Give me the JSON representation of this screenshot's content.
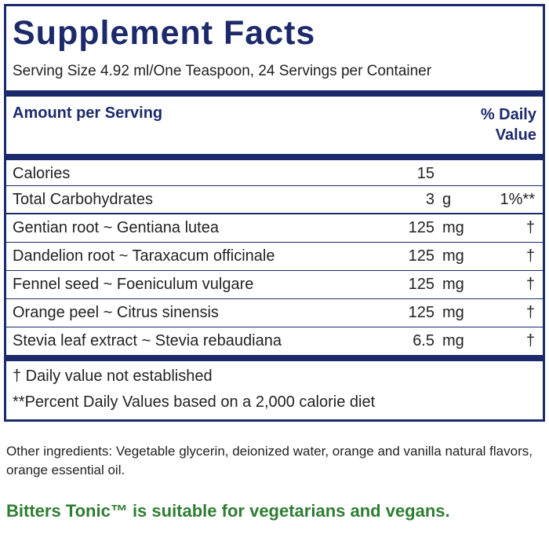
{
  "header": {
    "title": "Supplement Facts",
    "serving": "Serving Size 4.92 ml/One Teaspoon, 24 Servings per Container"
  },
  "table": {
    "amount_header": "Amount per Serving",
    "dv_header": "% Daily Value",
    "rows": [
      {
        "name": "Calories",
        "amount": "15"
      },
      {
        "name": "Total Carbohydrates",
        "amount": "3",
        "unit": "g",
        "dv": "1%**"
      },
      {
        "name": "Gentian root ~ Gentiana lutea",
        "amount": "125",
        "unit": "mg",
        "dv": "†"
      },
      {
        "name": "Dandelion root ~ Taraxacum officinale",
        "amount": "125",
        "unit": "mg",
        "dv": "†"
      },
      {
        "name": "Fennel seed ~ Foeniculum vulgare",
        "amount": "125",
        "unit": "mg",
        "dv": "†"
      },
      {
        "name": "Orange peel ~ Citrus sinensis",
        "amount": "125",
        "unit": "mg",
        "dv": "†"
      },
      {
        "name": "Stevia leaf extract ~ Stevia rebaudiana",
        "amount": "6.5",
        "unit": "mg",
        "dv": "†"
      }
    ]
  },
  "footnotes": [
    "† Daily value not established",
    "**Percent Daily Values based on a 2,000 calorie diet"
  ],
  "other_ingredients": "Other ingredients: Vegetable glycerin, deionized water, orange and vanilla natural flavors, orange essential oil.",
  "claim": "Bitters Tonic™ is suitable for vegetarians and vegans."
}
